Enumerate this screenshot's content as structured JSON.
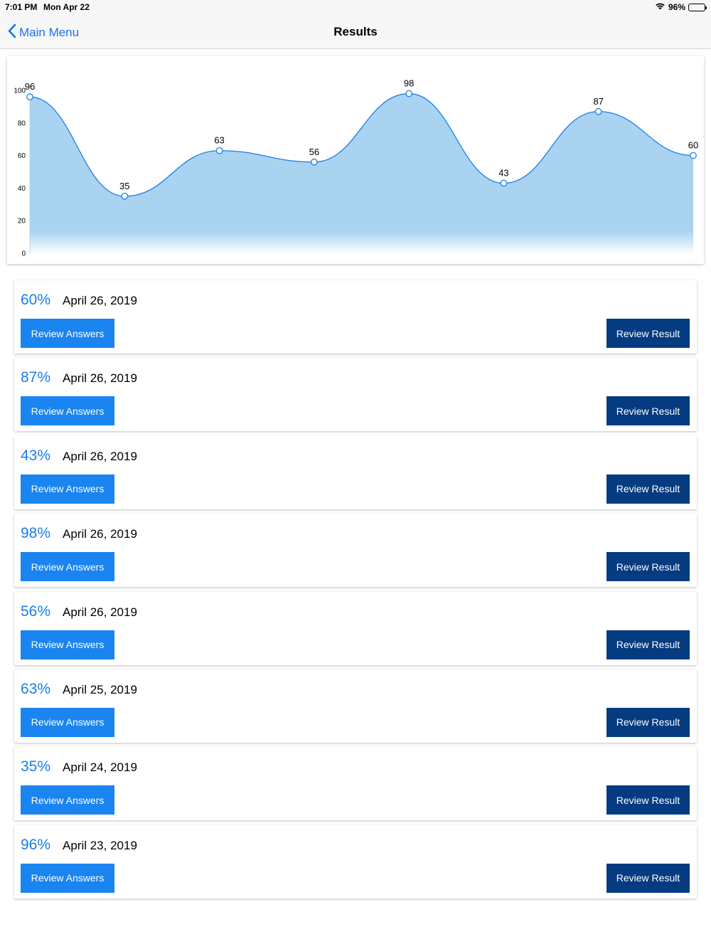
{
  "status_bar": {
    "time": "7:01 PM",
    "date": "Mon Apr 22",
    "battery": "96%",
    "battery_level": 0.96
  },
  "nav": {
    "back_label": "Main Menu",
    "title": "Results"
  },
  "chart_data": {
    "type": "area",
    "values": [
      96,
      35,
      63,
      56,
      98,
      43,
      87,
      60
    ],
    "ylim": [
      0,
      100
    ],
    "yticks": [
      "0",
      "20",
      "40",
      "60",
      "80",
      "100"
    ],
    "fill_color": "#a9d3f0",
    "line_color": "#1a7ee8"
  },
  "results": [
    {
      "score": "60%",
      "date": "April 26, 2019",
      "answers_label": "Review Answers",
      "result_label": "Review Result"
    },
    {
      "score": "87%",
      "date": "April 26, 2019",
      "answers_label": "Review Answers",
      "result_label": "Review Result"
    },
    {
      "score": "43%",
      "date": "April 26, 2019",
      "answers_label": "Review Answers",
      "result_label": "Review Result"
    },
    {
      "score": "98%",
      "date": "April 26, 2019",
      "answers_label": "Review Answers",
      "result_label": "Review Result"
    },
    {
      "score": "56%",
      "date": "April 26, 2019",
      "answers_label": "Review Answers",
      "result_label": "Review Result"
    },
    {
      "score": "63%",
      "date": "April 25, 2019",
      "answers_label": "Review Answers",
      "result_label": "Review Result"
    },
    {
      "score": "35%",
      "date": "April 24, 2019",
      "answers_label": "Review Answers",
      "result_label": "Review Result"
    },
    {
      "score": "96%",
      "date": "April 23, 2019",
      "answers_label": "Review Answers",
      "result_label": "Review Result"
    }
  ]
}
